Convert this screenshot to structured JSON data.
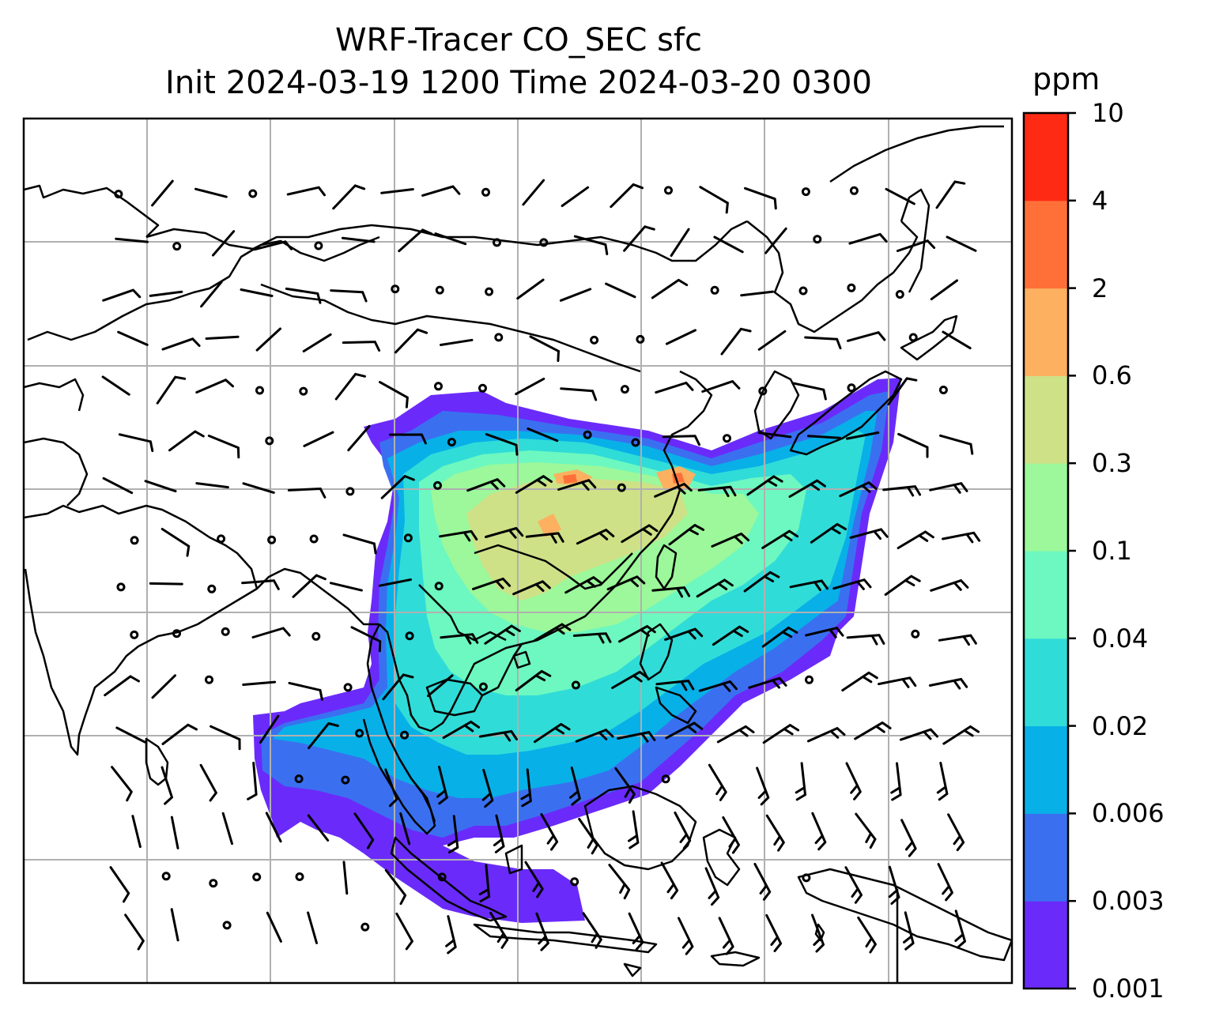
{
  "title": {
    "line1": "WRF-Tracer CO_SEC sfc",
    "line2": "Init 2024-03-19 1200 Time 2024-03-20 0300"
  },
  "colorbar": {
    "unit": "ppm",
    "levels": [
      "0.001",
      "0.003",
      "0.006",
      "0.02",
      "0.04",
      "0.1",
      "0.3",
      "0.6",
      "2",
      "4",
      "10"
    ],
    "colors": [
      "#6a2bfa",
      "#3a70f0",
      "#08b0e8",
      "#30dcd8",
      "#6cf8c0",
      "#9cf89a",
      "#cee187",
      "#fdb060",
      "#ff7038",
      "#ff2a14"
    ]
  },
  "map": {
    "grid": true,
    "projection": "lat-lon",
    "field": "CO_SEC surface tracer concentration",
    "wind": "wind barbs and calm circles"
  }
}
